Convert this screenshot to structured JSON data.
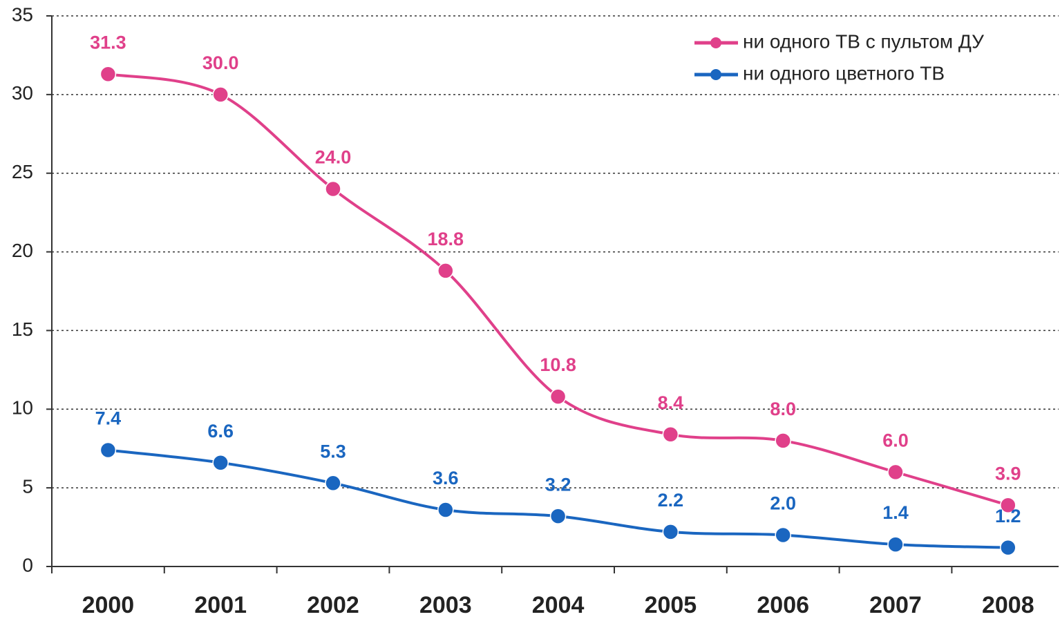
{
  "chart_data": {
    "type": "line",
    "categories": [
      "2000",
      "2001",
      "2002",
      "2003",
      "2004",
      "2005",
      "2006",
      "2007",
      "2008"
    ],
    "series": [
      {
        "name": "ни одного ТВ с пультом ДУ",
        "color": "#e0408a",
        "values": [
          31.3,
          30.0,
          24.0,
          18.8,
          10.8,
          8.4,
          8.0,
          6.0,
          3.9
        ],
        "value_labels": [
          "31.3",
          "30.0",
          "24.0",
          "18.8",
          "10.8",
          "8.4",
          "8.0",
          "6.0",
          "3.9"
        ]
      },
      {
        "name": "ни одного цветного ТВ",
        "color": "#1a66c0",
        "values": [
          7.4,
          6.6,
          5.3,
          3.6,
          3.2,
          2.2,
          2.0,
          1.4,
          1.2
        ],
        "value_labels": [
          "7.4",
          "6.6",
          "5.3",
          "3.6",
          "3.2",
          "2.2",
          "2.0",
          "1.4",
          "1.2"
        ]
      }
    ],
    "ylim": [
      0,
      35
    ],
    "yticks": [
      0,
      5,
      10,
      15,
      20,
      25,
      30,
      35
    ],
    "grid": true,
    "legend": "upper right"
  }
}
